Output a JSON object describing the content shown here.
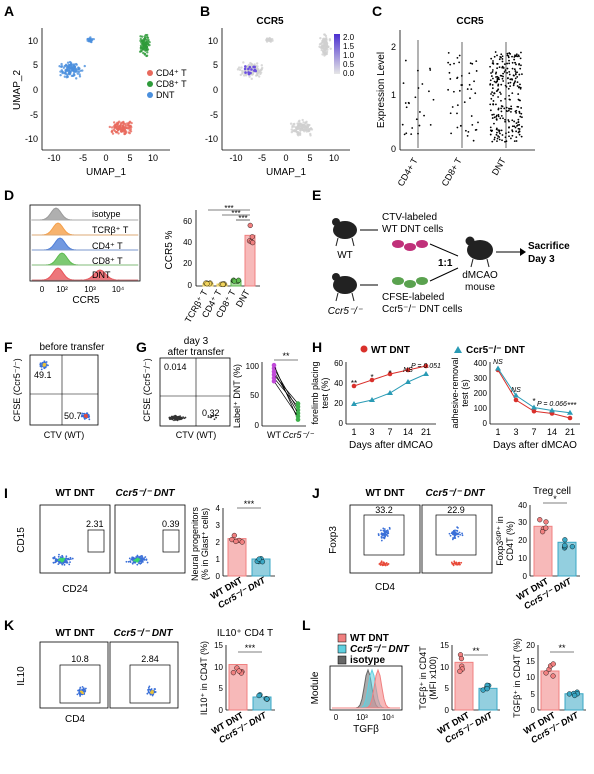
{
  "panels": {
    "A": {
      "letter": "A",
      "xlabel": "UMAP_1",
      "ylabel": "UMAP_2",
      "xticks": [
        "-10",
        "-5",
        "0",
        "5",
        "10"
      ],
      "yticks": [
        "10",
        "5",
        "0",
        "-5",
        "-10"
      ],
      "legend": [
        "CD4⁺ T",
        "CD8⁺ T",
        "DNT"
      ],
      "colors": {
        "cd4": "#e8695c",
        "cd8": "#2e9b3a",
        "dnt": "#4a8fdd"
      }
    },
    "B": {
      "letter": "B",
      "title": "CCR5",
      "xlabel": "UMAP_1",
      "xticks": [
        "-10",
        "-5",
        "0",
        "5",
        "10"
      ],
      "yticks": [
        "10",
        "5",
        "0",
        "-5",
        "-10"
      ],
      "colorbar": [
        "2.0",
        "1.5",
        "1.0",
        "0.5",
        "0.0"
      ]
    },
    "C": {
      "letter": "C",
      "title": "CCR5",
      "ylabel": "Expression Level",
      "yticks": [
        "2",
        "1",
        "0"
      ],
      "groups": [
        "CD4+ T",
        "CD8+ T",
        "DNT"
      ]
    },
    "D": {
      "letter": "D",
      "hist_labels": [
        "isotype",
        "TCRβ⁺ T",
        "CD4⁺ T",
        "CD8⁺ T",
        "DNT"
      ],
      "hist_xlabel": "CCR5",
      "hist_xticks": [
        "0",
        "10²",
        "10³",
        "10⁴"
      ],
      "bar_ylabel": "CCR5 %",
      "bar_yticks": [
        "60",
        "40",
        "20",
        "0"
      ],
      "bar_cats": [
        "TCRβ⁺ T",
        "CD4⁺ T",
        "CD8⁺ T",
        "DNT"
      ],
      "sig": [
        "***",
        "***",
        "***"
      ]
    },
    "E": {
      "letter": "E",
      "wt": "WT",
      "ko": "Ccr5⁻/⁻",
      "ctv": [
        "CTV-labeled",
        "WT DNT cells"
      ],
      "cfse": [
        "CFSE-labeled",
        "Ccr5⁻/⁻ DNT cells"
      ],
      "ratio": "1:1",
      "mouse": [
        "dMCAO",
        "mouse"
      ],
      "sacrifice": [
        "Sacrifice",
        "Day 3"
      ]
    },
    "F": {
      "letter": "F",
      "title": "before transfer",
      "ylabel": "CFSE (Ccr5⁻/⁻)",
      "xlabel": "CTV (WT)",
      "q1": "49.1",
      "q2": "50.7"
    },
    "G": {
      "letter": "G",
      "title": [
        "day 3",
        "after transfer"
      ],
      "ylabel": "CFSE (Ccr5⁻/⁻)",
      "xlabel": "CTV (WT)",
      "q1": "0.014",
      "q2": "0.32",
      "line_ylabel": "Label⁺ DNT (%)",
      "line_yticks": [
        "100",
        "50",
        "0"
      ],
      "line_xcats": [
        "WT",
        "Ccr5⁻/⁻"
      ],
      "sig": "**"
    },
    "H": {
      "letter": "H",
      "legend": [
        "WT DNT",
        "Ccr5⁻/⁻ DNT"
      ],
      "left_ylabel": [
        "forelimb placing",
        "test (%)"
      ],
      "left_yticks": [
        "60",
        "40",
        "20",
        "0"
      ],
      "right_ylabel": [
        "adhesive-removal",
        "test (s)"
      ],
      "right_yticks": [
        "400",
        "300",
        "200",
        "100",
        "0"
      ],
      "xticks": [
        "1",
        "3",
        "7",
        "14",
        "21"
      ],
      "xlabel": "Days after dMCAO",
      "left_sig": [
        "**",
        "*",
        "*",
        "NS",
        "P = 0.051"
      ],
      "right_sig": [
        "NS",
        "NS",
        "*",
        "P = 0.066",
        "***"
      ]
    },
    "I": {
      "letter": "I",
      "g1": "WT DNT",
      "g2": "Ccr5⁻/⁻ DNT",
      "ylabel": "CD15",
      "xlabel": "CD24",
      "v1": "2.31",
      "v2": "0.39",
      "bar_ylabel": [
        "Neural progenitors",
        "(% in Glast⁺ cells)"
      ],
      "bar_yticks": [
        "4",
        "3",
        "2",
        "1",
        "0"
      ],
      "sig": "***"
    },
    "J": {
      "letter": "J",
      "g1": "WT DNT",
      "g2": "Ccr5⁻/⁻ DNT",
      "ylabel": "Foxp3",
      "xlabel": "CD4",
      "v1": "33.2",
      "v2": "22.9",
      "bar_title": "Treg cell",
      "bar_ylabel": [
        "Foxp3ᴳᶠᴾ⁺ in",
        "CD4T (%)"
      ],
      "bar_yticks": [
        "40",
        "30",
        "20",
        "10",
        "0"
      ],
      "sig": "*"
    },
    "K": {
      "letter": "K",
      "g1": "WT DNT",
      "g2": "Ccr5⁻/⁻ DNT",
      "ylabel": "IL10",
      "xlabel": "CD4",
      "v1": "10.8",
      "v2": "2.84",
      "bar_title": "IL10⁺ CD4 T",
      "bar_ylabel": "IL10⁺ in CD4T (%)",
      "bar_yticks": [
        "15",
        "10",
        "5",
        "0"
      ],
      "sig": "***"
    },
    "L": {
      "letter": "L",
      "legend": [
        "WT DNT",
        "Ccr5⁻/⁻ DNT",
        "isotype"
      ],
      "hist_ylabel": "Module",
      "hist_xlabel": "TGFβ",
      "hist_xticks": [
        "0",
        "10³",
        "10⁴"
      ],
      "bar1_ylabel": [
        "TGFβ⁺ in CD4T",
        "(MFI x100)"
      ],
      "bar1_yticks": [
        "15",
        "10",
        "5",
        "0"
      ],
      "bar2_ylabel": "TGFβ⁺ in CD4T (%)",
      "bar2_yticks": [
        "20",
        "15",
        "10",
        "5",
        "0"
      ],
      "sig1": "**",
      "sig2": "**"
    }
  },
  "groups_bar": [
    "WT DNT",
    "Ccr5⁻/⁻ DNT"
  ],
  "colors": {
    "wt": "#f08080",
    "ko": "#3aa7c4",
    "red": "#d9302b",
    "line": "#2a9bb5"
  },
  "chart_data": [
    {
      "type": "bar",
      "panel": "D",
      "categories": [
        "TCRβ⁺ T",
        "CD4⁺ T",
        "CD8⁺ T",
        "DNT"
      ],
      "values": [
        2,
        1.5,
        4,
        40
      ],
      "ylim": [
        0,
        60
      ],
      "ylabel": "CCR5 %"
    },
    {
      "type": "line",
      "panel": "G",
      "categories": [
        "WT",
        "Ccr5⁻/⁻"
      ],
      "values": [
        [
          90,
          25
        ],
        [
          85,
          20
        ],
        [
          75,
          30
        ],
        [
          95,
          10
        ],
        [
          70,
          15
        ],
        [
          80,
          35
        ]
      ],
      "ylim": [
        0,
        100
      ]
    },
    {
      "type": "line",
      "panel": "H-left",
      "x": [
        1,
        3,
        7,
        14,
        21
      ],
      "series": [
        {
          "name": "WT DNT",
          "values": [
            38,
            44,
            50,
            54,
            58
          ]
        },
        {
          "name": "Ccr5⁻/⁻ DNT",
          "values": [
            20,
            24,
            31,
            42,
            50
          ]
        }
      ],
      "ylim": [
        0,
        60
      ]
    },
    {
      "type": "line",
      "panel": "H-right",
      "x": [
        1,
        3,
        7,
        14,
        21
      ],
      "series": [
        {
          "name": "WT DNT",
          "values": [
            360,
            160,
            85,
            70,
            40
          ]
        },
        {
          "name": "Ccr5⁻/⁻ DNT",
          "values": [
            370,
            190,
            110,
            90,
            75
          ]
        }
      ],
      "ylim": [
        0,
        400
      ]
    },
    {
      "type": "bar",
      "panel": "I",
      "categories": [
        "WT DNT",
        "Ccr5⁻/⁻ DNT"
      ],
      "values": [
        2.2,
        1.0
      ],
      "ylim": [
        0,
        4
      ]
    },
    {
      "type": "bar",
      "panel": "J",
      "categories": [
        "WT DNT",
        "Ccr5⁻/⁻ DNT"
      ],
      "values": [
        28,
        19
      ],
      "ylim": [
        0,
        40
      ]
    },
    {
      "type": "bar",
      "panel": "K",
      "categories": [
        "WT DNT",
        "Ccr5⁻/⁻ DNT"
      ],
      "values": [
        10.5,
        3.0
      ],
      "ylim": [
        0,
        15
      ]
    },
    {
      "type": "bar",
      "panel": "L-MFI",
      "categories": [
        "WT DNT",
        "Ccr5⁻/⁻ DNT"
      ],
      "values": [
        11,
        5
      ],
      "ylim": [
        0,
        15
      ]
    },
    {
      "type": "bar",
      "panel": "L-pct",
      "categories": [
        "WT DNT",
        "Ccr5⁻/⁻ DNT"
      ],
      "values": [
        12,
        5
      ],
      "ylim": [
        0,
        20
      ]
    }
  ]
}
